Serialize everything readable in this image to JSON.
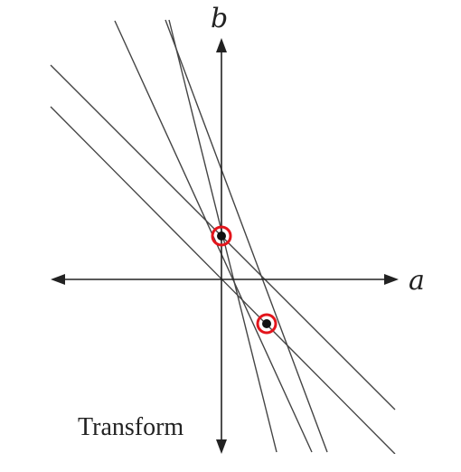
{
  "axes": {
    "x_label": "a",
    "y_label": "b"
  },
  "caption": "Transform",
  "colors": {
    "line": "#444444",
    "axis": "#222222",
    "point": "#111111",
    "highlight": "#e3141b"
  },
  "lines": [
    {
      "id": "line-1",
      "slope": -0.83
    },
    {
      "id": "line-2",
      "slope": -1.08
    },
    {
      "id": "line-3",
      "slope": -2.58
    },
    {
      "id": "line-4",
      "slope": -3.24
    },
    {
      "id": "line-5",
      "slope": -4.5
    }
  ],
  "points": [
    {
      "id": "intersection-upper",
      "highlighted": true
    },
    {
      "id": "intersection-lower",
      "highlighted": true
    }
  ]
}
